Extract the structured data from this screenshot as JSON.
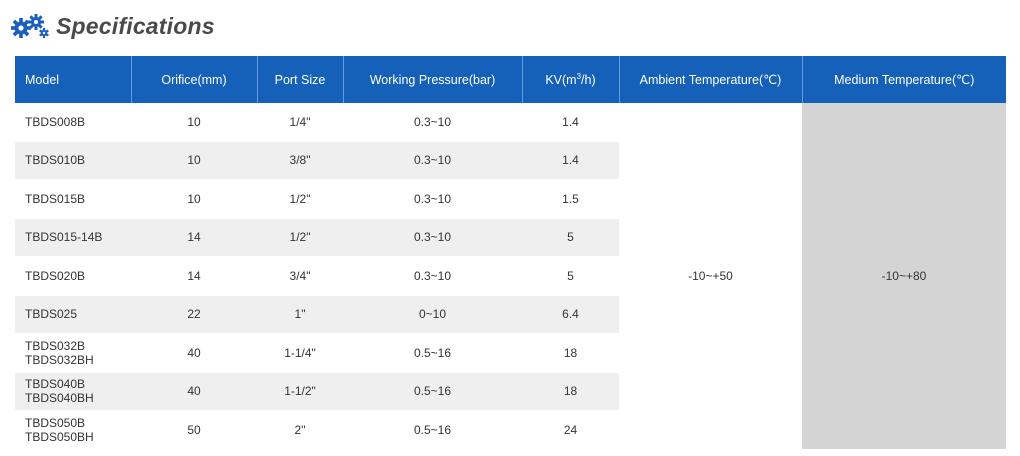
{
  "header": {
    "title": "Specifications",
    "icon": "gears-icon",
    "icon_color": "#1a5fc0"
  },
  "colors": {
    "header_bg": "#1560b8",
    "header_text": "#ffffff",
    "stripe": "#efefef",
    "medium_bg": "#d4d4d4"
  },
  "table": {
    "columns": {
      "model": "Model",
      "orifice": "Orifice(mm)",
      "port": "Port Size",
      "pressure": "Working Pressure(bar)",
      "kv_prefix": "KV(m",
      "kv_sup": "3",
      "kv_suffix": "/h)",
      "ambient": "Ambient Temperature(℃)",
      "medium": "Medium Temperature(℃)"
    },
    "ambient_value": "-10~+50",
    "medium_value": "-10~+80",
    "rows": [
      {
        "model": [
          "TBDS008B"
        ],
        "orifice": "10",
        "port": "1/4\"",
        "pressure": "0.3~10",
        "kv": "1.4"
      },
      {
        "model": [
          "TBDS010B"
        ],
        "orifice": "10",
        "port": "3/8\"",
        "pressure": "0.3~10",
        "kv": "1.4"
      },
      {
        "model": [
          "TBDS015B"
        ],
        "orifice": "10",
        "port": "1/2\"",
        "pressure": "0.3~10",
        "kv": "1.5"
      },
      {
        "model": [
          "TBDS015-14B"
        ],
        "orifice": "14",
        "port": "1/2\"",
        "pressure": "0.3~10",
        "kv": "5"
      },
      {
        "model": [
          "TBDS020B"
        ],
        "orifice": "14",
        "port": "3/4\"",
        "pressure": "0.3~10",
        "kv": "5"
      },
      {
        "model": [
          "TBDS025"
        ],
        "orifice": "22",
        "port": "1\"",
        "pressure": "0~10",
        "kv": "6.4"
      },
      {
        "model": [
          "TBDS032B",
          "TBDS032BH"
        ],
        "orifice": "40",
        "port": "1-1/4\"",
        "pressure": "0.5~16",
        "kv": "18"
      },
      {
        "model": [
          "TBDS040B",
          "TBDS040BH"
        ],
        "orifice": "40",
        "port": "1-1/2\"",
        "pressure": "0.5~16",
        "kv": "18"
      },
      {
        "model": [
          "TBDS050B",
          "TBDS050BH"
        ],
        "orifice": "50",
        "port": "2\"",
        "pressure": "0.5~16",
        "kv": "24"
      }
    ]
  }
}
